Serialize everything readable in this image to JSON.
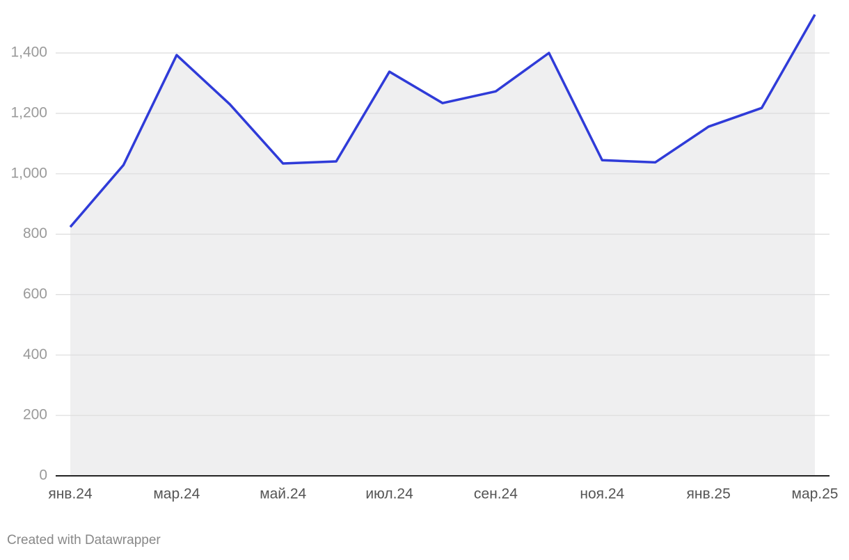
{
  "chart_data": {
    "type": "area-line",
    "categories": [
      "янв.24",
      null,
      "мар.24",
      null,
      "май.24",
      null,
      "июл.24",
      null,
      "сен.24",
      null,
      "ноя.24",
      null,
      "янв.25",
      null,
      "мар.25"
    ],
    "values": [
      824,
      1029,
      1393,
      1230,
      1034,
      1041,
      1338,
      1234,
      1273,
      1400,
      1045,
      1038,
      1156,
      1218,
      1527
    ],
    "color": "#2f3bd8",
    "fill_color": "#efeff0",
    "ylim": [
      0,
      1527
    ],
    "yticks": [
      0,
      200,
      400,
      600,
      800,
      {
        "value": 1000,
        "label": "1,000"
      },
      {
        "value": 1200,
        "label": "1,200"
      },
      {
        "value": 1400,
        "label": "1,400"
      }
    ],
    "grid": true
  },
  "credit": "Created with Datawrapper"
}
